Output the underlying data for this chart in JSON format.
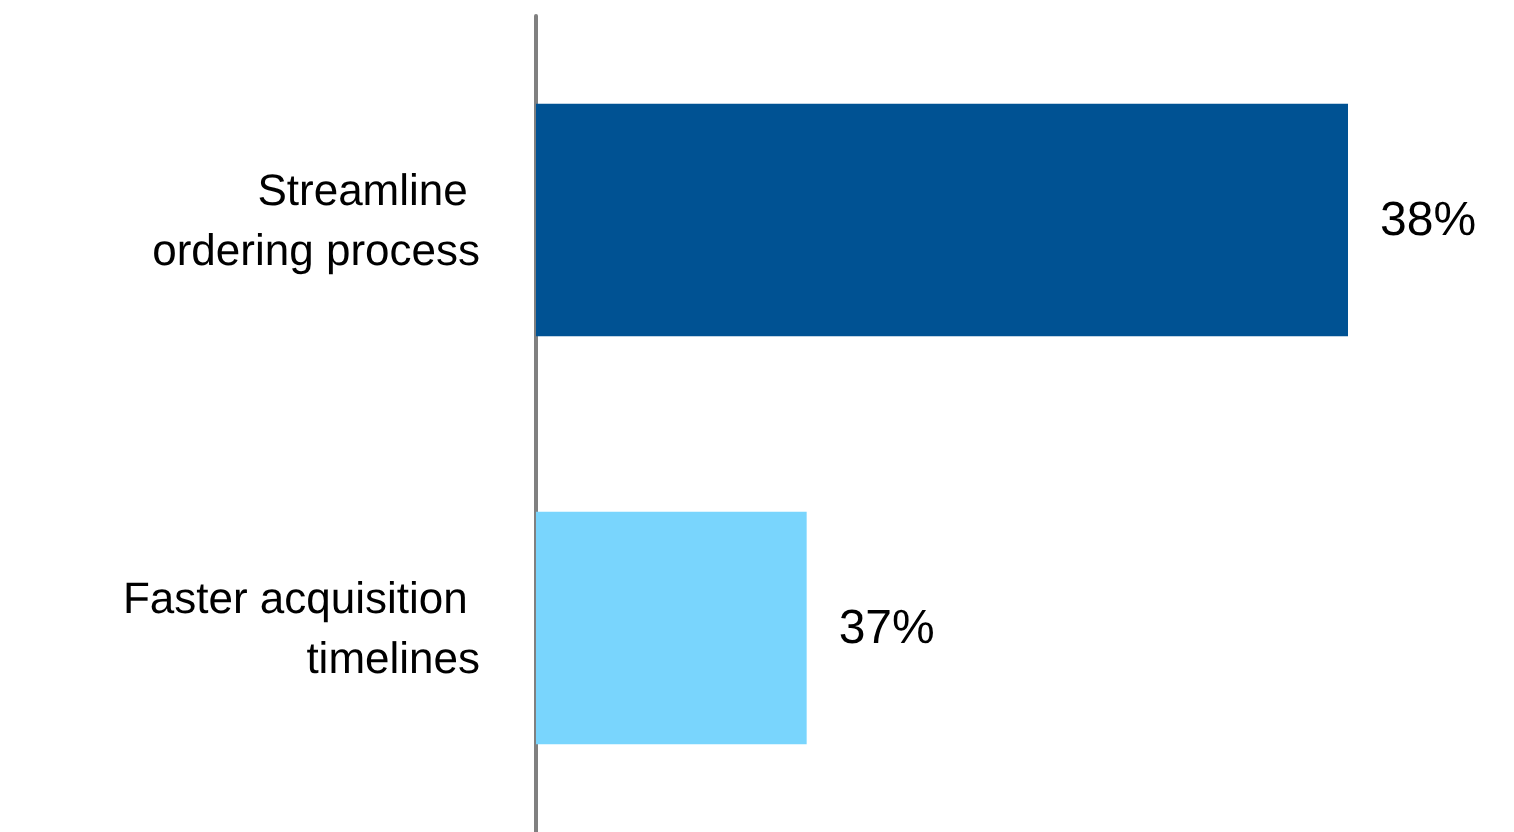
{
  "chart_data": {
    "type": "bar",
    "orientation": "horizontal",
    "categories": [
      "Streamline ordering process",
      "Faster acquisition timelines"
    ],
    "values": [
      38,
      37
    ],
    "colors": [
      "#005293",
      "#79d5fd"
    ],
    "value_labels": [
      "38%",
      "37%"
    ],
    "xlim": [
      36.5,
      38
    ]
  }
}
